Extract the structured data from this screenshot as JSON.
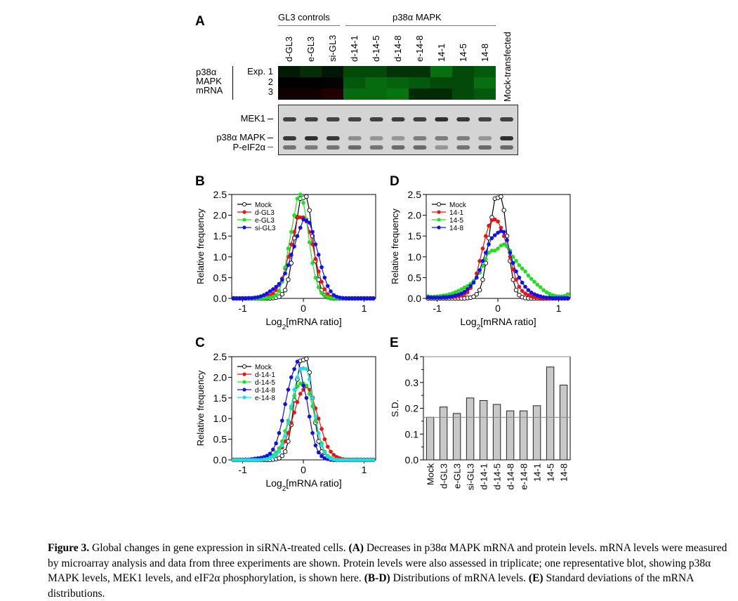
{
  "panelA": {
    "letter": "A",
    "group_gl3": "GL3 controls",
    "group_p38": "p38α MAPK",
    "columns": [
      "d-GL3",
      "e-GL3",
      "si-GL3",
      "d-14-1",
      "d-14-5",
      "d-14-8",
      "e-14-8",
      "14-1",
      "14-5",
      "14-8"
    ],
    "mock_label": "Mock-transfected",
    "row_group_label": [
      "p38α",
      "MAPK",
      "mRNA"
    ],
    "rows": [
      "Exp. 1",
      "2",
      "3"
    ],
    "heatmap_colors": [
      [
        "#021a04",
        "#032e08",
        "#021806",
        "#034a0a",
        "#034a0a",
        "#023306",
        "#023306",
        "#066f0f",
        "#034a0a",
        "#045a0c"
      ],
      [
        "#000000",
        "#000000",
        "#010402",
        "#04580d",
        "#066a0f",
        "#05630e",
        "#045a0c",
        "#034a0a",
        "#034a0a",
        "#066f0f"
      ],
      [
        "#110000",
        "#110000",
        "#220000",
        "#066a0f",
        "#066a0f",
        "#07750f",
        "#022a05",
        "#022a05",
        "#034a0a",
        "#045a0c"
      ]
    ],
    "blot_labels": [
      "MEK1",
      "p38α MAPK",
      "P-eIF2α"
    ],
    "blot_intensity": {
      "MEK1": [
        0.8,
        0.8,
        0.78,
        0.78,
        0.8,
        0.82,
        0.8,
        0.9,
        0.85,
        0.78,
        0.8
      ],
      "p38": [
        0.85,
        0.9,
        0.85,
        0.35,
        0.3,
        0.3,
        0.45,
        0.45,
        0.45,
        0.3,
        0.9
      ],
      "eIF2": [
        0.5,
        0.45,
        0.5,
        0.55,
        0.5,
        0.55,
        0.55,
        0.3,
        0.5,
        0.55,
        0.55
      ]
    }
  },
  "chart_data": [
    {
      "id": "B",
      "type": "line",
      "letter": "B",
      "xlabel_main": "Log",
      "xlabel_sub": "2",
      "xlabel_rest": "[mRNA ratio]",
      "ylabel": "Relative frequency",
      "xlim": [
        -1.18,
        1.19
      ],
      "ylim": [
        0,
        2.5
      ],
      "xticks": [
        -1,
        0,
        1
      ],
      "yticks": [
        "0.0",
        "0.5",
        "1.0",
        "1.5",
        "2.0",
        "2.5"
      ],
      "legend_position": "top-left",
      "x_start": -1.2,
      "x_step": 0.05,
      "series": [
        {
          "name": "Mock",
          "color": "#000000",
          "open": true,
          "values": [
            0,
            0,
            0,
            0,
            0,
            0,
            0,
            0,
            0,
            0,
            0,
            0,
            0,
            0,
            0.01,
            0.02,
            0.04,
            0.1,
            0.2,
            0.45,
            0.85,
            1.45,
            1.95,
            2.4,
            2.42,
            2.45,
            2.12,
            1.5,
            0.9,
            0.45,
            0.2,
            0.08,
            0.03,
            0.01,
            0,
            0,
            0,
            0,
            0,
            0,
            0,
            0,
            0,
            0,
            0,
            0,
            0,
            0
          ]
        },
        {
          "name": "d-GL3",
          "color": "#ee1111",
          "open": false,
          "values": [
            0,
            0,
            0,
            0,
            0,
            0,
            0,
            0,
            0,
            0,
            0.01,
            0.02,
            0.04,
            0.07,
            0.12,
            0.2,
            0.32,
            0.48,
            0.72,
            1.0,
            1.3,
            1.6,
            1.95,
            1.95,
            1.95,
            1.85,
            1.6,
            1.3,
            0.95,
            0.65,
            0.4,
            0.22,
            0.1,
            0.04,
            0.02,
            0,
            0,
            0,
            0,
            0,
            0,
            0,
            0,
            0,
            0,
            0,
            0,
            0
          ]
        },
        {
          "name": "e-GL3",
          "color": "#22dd22",
          "open": false,
          "values": [
            0,
            0,
            0,
            0,
            0,
            0,
            0,
            0,
            0,
            0,
            0,
            0,
            0.01,
            0.02,
            0.04,
            0.08,
            0.18,
            0.4,
            0.75,
            1.2,
            1.6,
            2.0,
            2.4,
            2.5,
            2.3,
            1.9,
            1.35,
            0.85,
            0.5,
            0.27,
            0.13,
            0.06,
            0.03,
            0.01,
            0,
            0,
            0,
            0,
            0,
            0,
            0,
            0,
            0,
            0,
            0,
            0,
            0,
            0
          ]
        },
        {
          "name": "si-GL3",
          "color": "#1111ee",
          "open": false,
          "values": [
            0,
            0,
            0,
            0,
            0,
            0,
            0.01,
            0.01,
            0.02,
            0.03,
            0.05,
            0.08,
            0.12,
            0.17,
            0.22,
            0.28,
            0.35,
            0.45,
            0.6,
            0.8,
            1.05,
            1.25,
            1.5,
            1.7,
            1.9,
            1.87,
            1.82,
            1.6,
            1.3,
            1.05,
            0.75,
            0.5,
            0.3,
            0.17,
            0.08,
            0.04,
            0.02,
            0.01,
            0,
            0,
            0,
            0,
            0,
            0,
            0,
            0,
            0,
            0
          ]
        }
      ]
    },
    {
      "id": "C",
      "type": "line",
      "letter": "C",
      "xlabel_main": "Log",
      "xlabel_sub": "2",
      "xlabel_rest": "[mRNA ratio]",
      "ylabel": "Relative frequency",
      "xlim": [
        -1.18,
        1.19
      ],
      "ylim": [
        0,
        2.5
      ],
      "xticks": [
        -1,
        0,
        1
      ],
      "yticks": [
        "0.0",
        "0.5",
        "1.0",
        "1.5",
        "2.0",
        "2.5"
      ],
      "legend_position": "top-left",
      "x_start": -1.2,
      "x_step": 0.05,
      "series": [
        {
          "name": "Mock",
          "color": "#000000",
          "open": true,
          "values": [
            0,
            0,
            0,
            0,
            0,
            0,
            0,
            0,
            0,
            0,
            0,
            0,
            0,
            0,
            0.01,
            0.02,
            0.04,
            0.1,
            0.2,
            0.45,
            0.85,
            1.45,
            1.95,
            2.4,
            2.42,
            2.45,
            2.12,
            1.5,
            0.9,
            0.45,
            0.2,
            0.08,
            0.03,
            0.01,
            0,
            0,
            0,
            0,
            0,
            0,
            0,
            0,
            0,
            0,
            0,
            0,
            0,
            0
          ]
        },
        {
          "name": "d-14-1",
          "color": "#ee1111",
          "open": false,
          "values": [
            0,
            0,
            0,
            0,
            0,
            0,
            0,
            0,
            0,
            0.01,
            0.01,
            0.02,
            0.03,
            0.05,
            0.08,
            0.13,
            0.2,
            0.3,
            0.45,
            0.65,
            0.9,
            1.15,
            1.4,
            1.6,
            1.7,
            1.78,
            1.7,
            1.5,
            1.25,
            1.0,
            0.75,
            0.5,
            0.32,
            0.2,
            0.12,
            0.07,
            0.04,
            0.02,
            0.01,
            0,
            0,
            0,
            0,
            0,
            0,
            0,
            0,
            0
          ]
        },
        {
          "name": "d-14-5",
          "color": "#22dd22",
          "open": false,
          "values": [
            0,
            0,
            0,
            0,
            0,
            0,
            0,
            0,
            0,
            0,
            0.01,
            0.02,
            0.04,
            0.07,
            0.11,
            0.18,
            0.28,
            0.45,
            0.7,
            0.95,
            1.25,
            1.55,
            1.78,
            1.85,
            1.85,
            1.8,
            1.6,
            1.3,
            0.95,
            0.65,
            0.4,
            0.2,
            0.1,
            0.05,
            0.02,
            0.01,
            0,
            0,
            0,
            0,
            0,
            0,
            0,
            0,
            0,
            0,
            0,
            0
          ]
        },
        {
          "name": "d-14-8",
          "color": "#1111dd",
          "open": false,
          "values": [
            0,
            0,
            0,
            0,
            0,
            0.01,
            0.01,
            0.02,
            0.03,
            0.04,
            0.05,
            0.07,
            0.1,
            0.15,
            0.25,
            0.4,
            0.65,
            0.95,
            1.35,
            1.7,
            2.0,
            2.2,
            2.38,
            2.2,
            1.8,
            1.5,
            1.05,
            0.65,
            0.35,
            0.18,
            0.09,
            0.04,
            0.02,
            0.01,
            0,
            0,
            0,
            0,
            0,
            0,
            0,
            0,
            0,
            0,
            0,
            0,
            0,
            0
          ]
        },
        {
          "name": "e-14-8",
          "color": "#22dddd",
          "open": false,
          "values": [
            0,
            0,
            0,
            0,
            0,
            0,
            0,
            0,
            0,
            0,
            0,
            0.01,
            0.02,
            0.04,
            0.07,
            0.12,
            0.2,
            0.35,
            0.58,
            0.9,
            1.3,
            1.7,
            2.0,
            2.2,
            2.22,
            2.2,
            1.95,
            1.5,
            1.05,
            0.65,
            0.35,
            0.17,
            0.08,
            0.03,
            0.01,
            0,
            0,
            0,
            0,
            0,
            0,
            0,
            0,
            0,
            0,
            0,
            0,
            0
          ]
        }
      ]
    },
    {
      "id": "D",
      "type": "line",
      "letter": "D",
      "xlabel_main": "Log",
      "xlabel_sub": "2",
      "xlabel_rest": "[mRNA ratio]",
      "ylabel": "Relative frequency",
      "xlim": [
        -1.18,
        1.19
      ],
      "ylim": [
        0,
        2.5
      ],
      "xticks": [
        -1,
        0,
        1
      ],
      "yticks": [
        "0.0",
        "0.5",
        "1.0",
        "1.5",
        "2.0",
        "2.5"
      ],
      "legend_position": "top-left",
      "x_start": -1.2,
      "x_step": 0.05,
      "series": [
        {
          "name": "Mock",
          "color": "#000000",
          "open": true,
          "values": [
            0,
            0,
            0,
            0,
            0,
            0,
            0,
            0,
            0,
            0,
            0,
            0,
            0,
            0,
            0.01,
            0.02,
            0.04,
            0.1,
            0.2,
            0.45,
            0.85,
            1.45,
            1.95,
            2.4,
            2.42,
            2.45,
            2.12,
            1.5,
            0.9,
            0.45,
            0.2,
            0.08,
            0.03,
            0.01,
            0,
            0,
            0,
            0,
            0,
            0,
            0,
            0,
            0,
            0,
            0,
            0,
            0,
            0
          ]
        },
        {
          "name": "14-1",
          "color": "#ee1111",
          "open": false,
          "values": [
            0.02,
            0.02,
            0.02,
            0.02,
            0.02,
            0.02,
            0.02,
            0.02,
            0.03,
            0.03,
            0.04,
            0.05,
            0.07,
            0.1,
            0.15,
            0.25,
            0.4,
            0.6,
            0.9,
            1.2,
            1.5,
            1.75,
            1.88,
            1.9,
            1.85,
            1.7,
            1.5,
            1.25,
            1.0,
            0.7,
            0.45,
            0.28,
            0.18,
            0.12,
            0.08,
            0.05,
            0.03,
            0.02,
            0.01,
            0.01,
            0,
            0,
            0,
            0,
            0,
            0,
            0,
            0
          ]
        },
        {
          "name": "14-5",
          "color": "#22dd22",
          "open": false,
          "values": [
            0.12,
            0.05,
            0.04,
            0.04,
            0.05,
            0.06,
            0.07,
            0.08,
            0.1,
            0.12,
            0.15,
            0.18,
            0.22,
            0.26,
            0.3,
            0.35,
            0.42,
            0.5,
            0.62,
            0.78,
            0.95,
            1.1,
            1.15,
            1.15,
            1.2,
            1.27,
            1.3,
            1.25,
            1.15,
            1.0,
            0.9,
            0.8,
            0.72,
            0.65,
            0.55,
            0.47,
            0.4,
            0.33,
            0.27,
            0.2,
            0.15,
            0.11,
            0.08,
            0.06,
            0.05,
            0.05,
            0.06,
            0.1
          ]
        },
        {
          "name": "14-8",
          "color": "#1111ee",
          "open": false,
          "values": [
            0.05,
            0.03,
            0.02,
            0.02,
            0.02,
            0.02,
            0.03,
            0.03,
            0.04,
            0.05,
            0.07,
            0.09,
            0.12,
            0.16,
            0.22,
            0.3,
            0.38,
            0.5,
            0.68,
            0.9,
            1.1,
            1.3,
            1.45,
            1.52,
            1.58,
            1.62,
            1.6,
            1.4,
            1.1,
            0.85,
            0.65,
            0.5,
            0.38,
            0.28,
            0.2,
            0.14,
            0.1,
            0.07,
            0.05,
            0.03,
            0.02,
            0.02,
            0.01,
            0.01,
            0.01,
            0.01,
            0.01,
            0.01
          ]
        }
      ]
    },
    {
      "id": "E",
      "type": "bar",
      "letter": "E",
      "ylabel": "S.D.",
      "ylim": [
        0,
        0.4
      ],
      "yticks": [
        "0.0",
        "0.1",
        "0.2",
        "0.3",
        "0.4"
      ],
      "reference_line": 0.165,
      "categories": [
        "Mock",
        "d-GL3",
        "e-GL3",
        "si-GL3",
        "d-14-1",
        "d-14-5",
        "d-14-8",
        "e-14-8",
        "14-1",
        "14-5",
        "14-8"
      ],
      "values": [
        0.165,
        0.205,
        0.18,
        0.24,
        0.23,
        0.215,
        0.19,
        0.19,
        0.21,
        0.36,
        0.29
      ]
    }
  ],
  "caption": {
    "fig_label": "Figure 3.",
    "t1": " Global changes in gene expression in siRNA-treated cells. ",
    "a_label": "(A)",
    "t2": " Decreases in p38α MAPK mRNA and protein levels. mRNA levels were measured by microarray analysis and data from three experiments are shown. Protein levels were also assessed in triplicate; one representative blot, showing p38α MAPK levels, MEK1 levels, and eIF2α phosphorylation, is shown here. ",
    "bd_label": "(B-D)",
    "t3": " Distributions of mRNA levels. ",
    "e_label": "(E)",
    "t4": " Standard deviations of the mRNA distributions."
  }
}
